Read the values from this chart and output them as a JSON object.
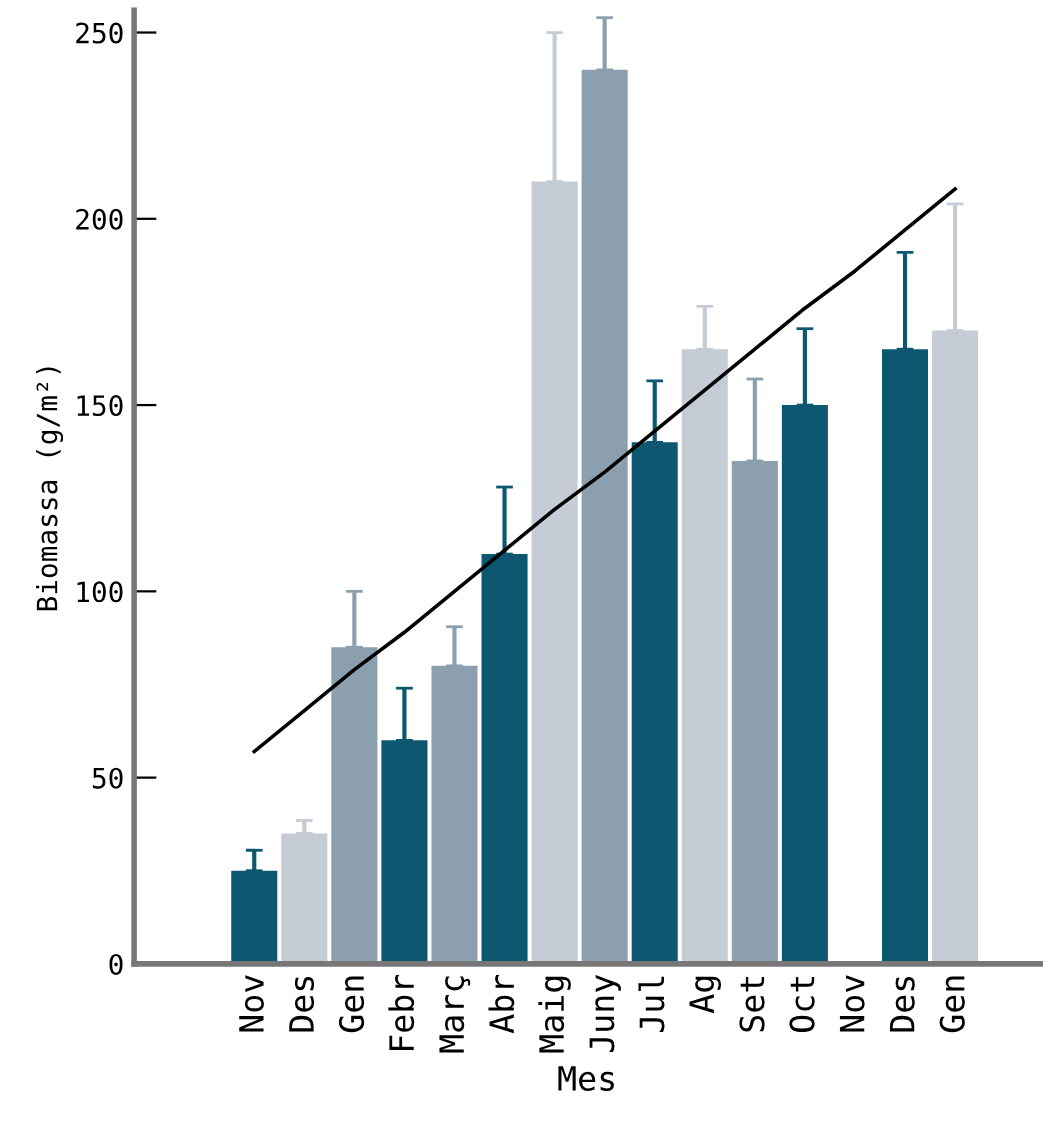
{
  "chart_data": {
    "type": "bar",
    "xlabel": "Mes",
    "ylabel": "Biomassa (g/m²)",
    "categories": [
      "Nov",
      "Des",
      "Gen",
      "Febr",
      "Març",
      "Abr",
      "Maig",
      "Juny",
      "Jul",
      "Ag",
      "Set",
      "Oct",
      "Nov",
      "Des",
      "Gen"
    ],
    "series": [
      {
        "values": [
          25,
          35,
          85,
          60,
          80,
          110,
          210,
          240,
          140,
          165,
          135,
          150,
          null,
          165,
          170
        ],
        "colors": [
          "#0d5870",
          "#c5ccd6",
          "#8c9fae",
          "#0d5870",
          "#8c9fae",
          "#0d5870",
          "#c5ccd6",
          "#8c9fae",
          "#0d5870",
          "#c5ccd6",
          "#8c9fae",
          "#0d5870",
          "#0d5870",
          "#0d5870",
          "#c5ccd6"
        ],
        "errors": [
          [
            25,
            30.5
          ],
          [
            35,
            38.5
          ],
          [
            85,
            100
          ],
          [
            60,
            74
          ],
          [
            80,
            90.5
          ],
          [
            110,
            128
          ],
          [
            210,
            250
          ],
          [
            240,
            254
          ],
          [
            140,
            156.5
          ],
          [
            165,
            176.5
          ],
          [
            135,
            157
          ],
          [
            150,
            170.5
          ],
          null,
          [
            165,
            191
          ],
          [
            170,
            204
          ]
        ]
      },
      {
        "type": "line",
        "color": "#000000",
        "values": [
          57,
          68,
          79,
          89,
          100,
          111,
          122,
          132,
          143,
          154,
          165,
          176,
          186,
          197,
          208
        ]
      }
    ],
    "ylim": [
      0,
      256
    ],
    "yticks": [
      0,
      50,
      100,
      150,
      200,
      250
    ],
    "grid": false,
    "legend": false
  }
}
